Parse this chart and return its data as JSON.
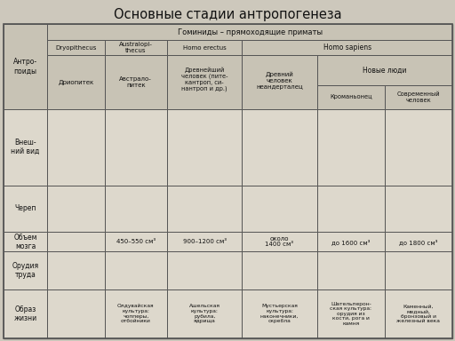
{
  "title": "Основные стадии антропогенеза",
  "title_fontsize": 10.5,
  "background_color": "#cdc8bc",
  "table_bg": "#ddd8cc",
  "header_bg": "#c8c3b5",
  "border_color": "#555555",
  "brain_volumes": [
    "",
    "450–550 см³",
    "900–1200 см³",
    "около\n1400 см³",
    "до 1600 см³",
    "до 1800 см³"
  ],
  "lifestyle": [
    "",
    "Олдувайская\nкультура:\nчопперы,\nотбойники",
    "Ашельская\nкультура:\nрубила,\nядрища",
    "Мустьерская\nкультура:\nнаконечники,\nскребла",
    "Шательперон-\nская культура:\nорудия из\nкости, рога и\nкамня",
    "Каменный,\nмедный,\nбронзовый и\nжелезный века"
  ]
}
